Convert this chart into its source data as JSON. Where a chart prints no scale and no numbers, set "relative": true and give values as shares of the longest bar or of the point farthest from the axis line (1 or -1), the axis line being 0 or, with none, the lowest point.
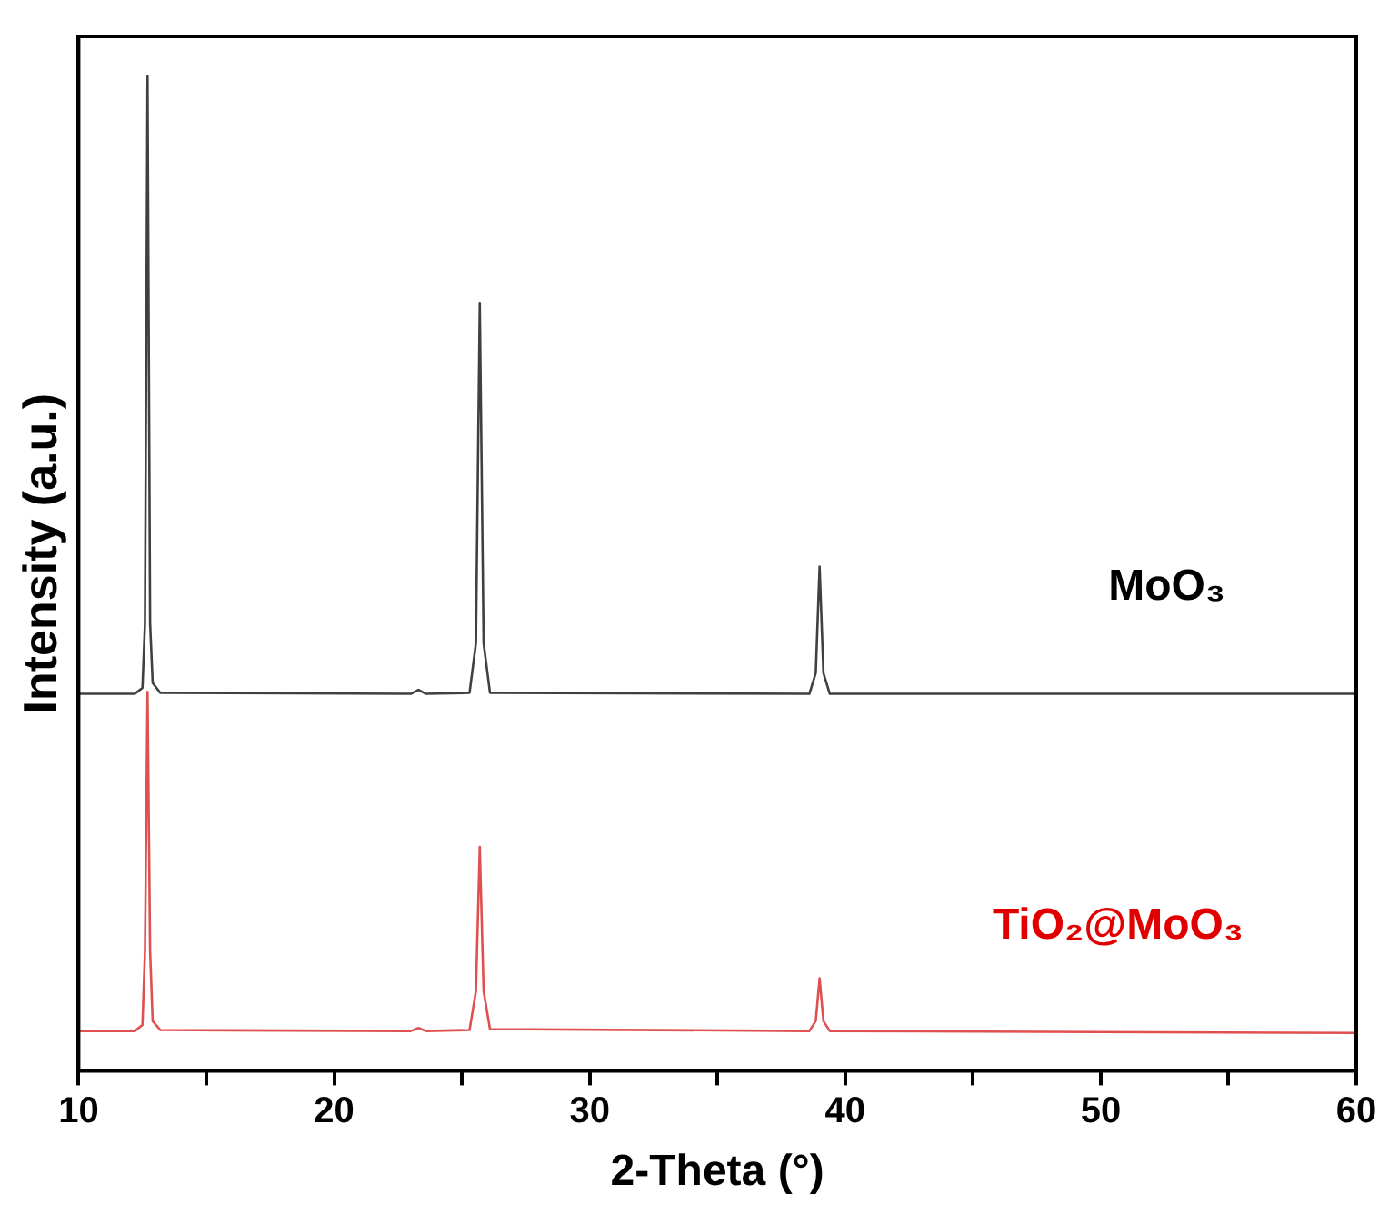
{
  "chart_data": {
    "type": "line",
    "relative": true,
    "xlabel": "2-Theta (°)",
    "ylabel": "Intensity (a.u.)",
    "x": [
      10,
      12.2,
      12.5,
      12.6,
      12.7,
      12.8,
      12.9,
      13.2,
      23.0,
      23.3,
      23.6,
      25.3,
      25.55,
      25.7,
      25.85,
      26.1,
      38.6,
      38.85,
      39.0,
      39.15,
      39.4,
      60
    ],
    "series": [
      {
        "name": "MoO₃",
        "color": "#404040",
        "values": [
          0.379,
          0.379,
          0.385,
          0.45,
          1,
          0.45,
          0.39,
          0.38,
          0.379,
          0.383,
          0.379,
          0.38,
          0.43,
          0.772,
          0.43,
          0.38,
          0.379,
          0.4,
          0.507,
          0.4,
          0.379,
          0.379
        ]
      },
      {
        "name": "TiO₂@MoO₃",
        "color": "#e05050",
        "values": [
          0.04,
          0.04,
          0.046,
          0.12,
          0.381,
          0.12,
          0.05,
          0.041,
          0.04,
          0.043,
          0.04,
          0.041,
          0.08,
          0.225,
          0.08,
          0.042,
          0.04,
          0.05,
          0.093,
          0.05,
          0.04,
          0.038
        ]
      }
    ],
    "xlim": [
      10,
      60
    ],
    "xticks": [
      10,
      {
        "value": 15,
        "label": null
      },
      20,
      {
        "value": 25,
        "label": null
      },
      30,
      {
        "value": 35,
        "label": null
      },
      40,
      {
        "value": 45,
        "label": null
      },
      50,
      {
        "value": 55,
        "label": null
      },
      60
    ],
    "tick_labels": "x",
    "grid": false,
    "legend": false,
    "marker": "none",
    "line_style": "solid"
  }
}
